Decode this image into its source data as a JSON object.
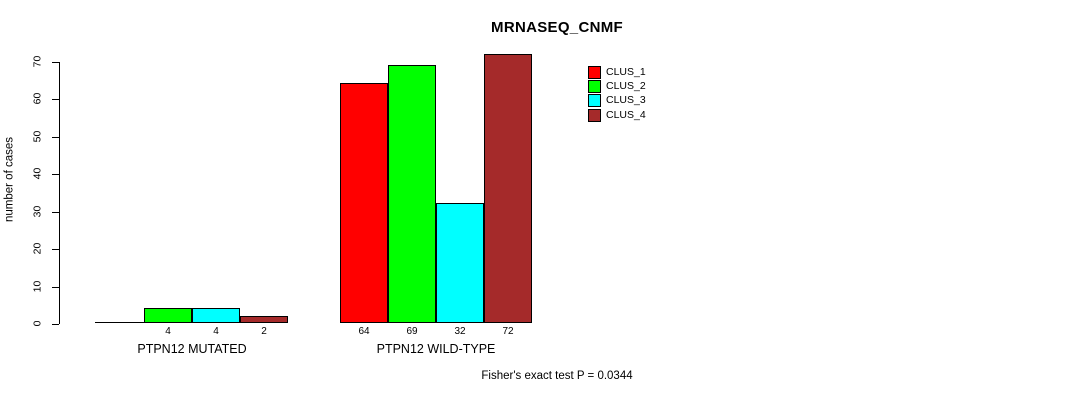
{
  "chart_data": {
    "type": "bar",
    "title": "MRNASEQ_CNMF",
    "xlabel": "",
    "ylabel": "number of cases",
    "ylim": [
      0,
      70
    ],
    "yticks": [
      0,
      10,
      20,
      30,
      40,
      50,
      60,
      70
    ],
    "grid": false,
    "categories": [
      "PTPN12 MUTATED",
      "PTPN12 WILD-TYPE"
    ],
    "series": [
      {
        "name": "CLUS_1",
        "color": "#ff0000",
        "values": [
          0,
          64
        ]
      },
      {
        "name": "CLUS_2",
        "color": "#00ff00",
        "values": [
          4,
          69
        ]
      },
      {
        "name": "CLUS_3",
        "color": "#00ffff",
        "values": [
          4,
          32
        ]
      },
      {
        "name": "CLUS_4",
        "color": "#a52a2a",
        "values": [
          2,
          72
        ]
      }
    ],
    "bar_value_labels": [
      [
        "",
        "4",
        "4",
        "2"
      ],
      [
        "64",
        "69",
        "32",
        "72"
      ]
    ],
    "legend_position": "top-right",
    "annotation": "Fisher's exact test P = 0.0344"
  }
}
